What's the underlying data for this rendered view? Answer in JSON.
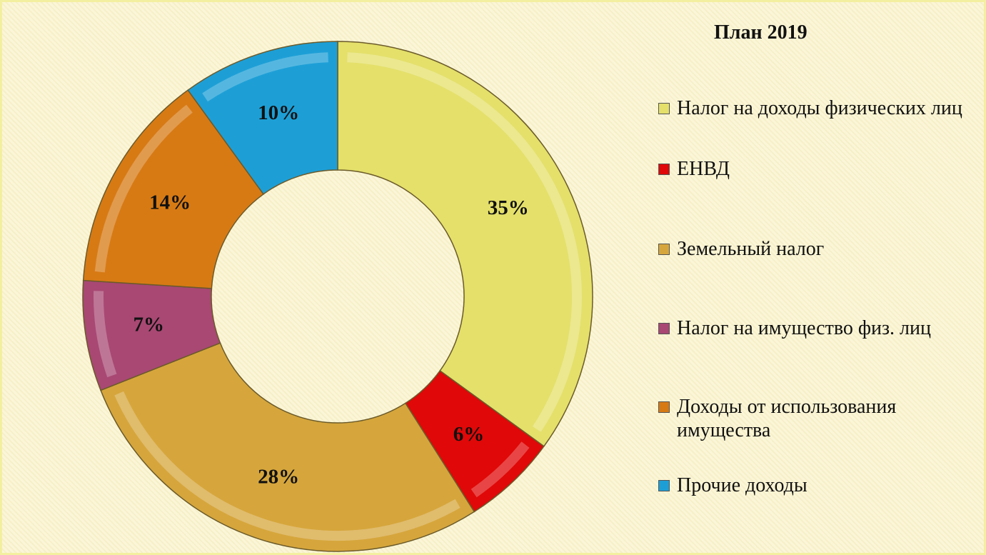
{
  "chart_data": {
    "type": "donut",
    "title": "План 2019",
    "categories": [
      "Налог на доходы физических лиц",
      "ЕНВД",
      "Земельный налог",
      "Налог на имущество физ. лиц",
      "Доходы от использования имущества",
      "Прочие доходы"
    ],
    "values": [
      35,
      6,
      28,
      7,
      14,
      10
    ],
    "value_labels": [
      "35%",
      "6%",
      "28%",
      "7%",
      "14%",
      "10%"
    ],
    "colors": [
      "#e4e06a",
      "#e00808",
      "#d6a63c",
      "#a84873",
      "#d77a14",
      "#1d9fd6"
    ],
    "legend": "right"
  }
}
